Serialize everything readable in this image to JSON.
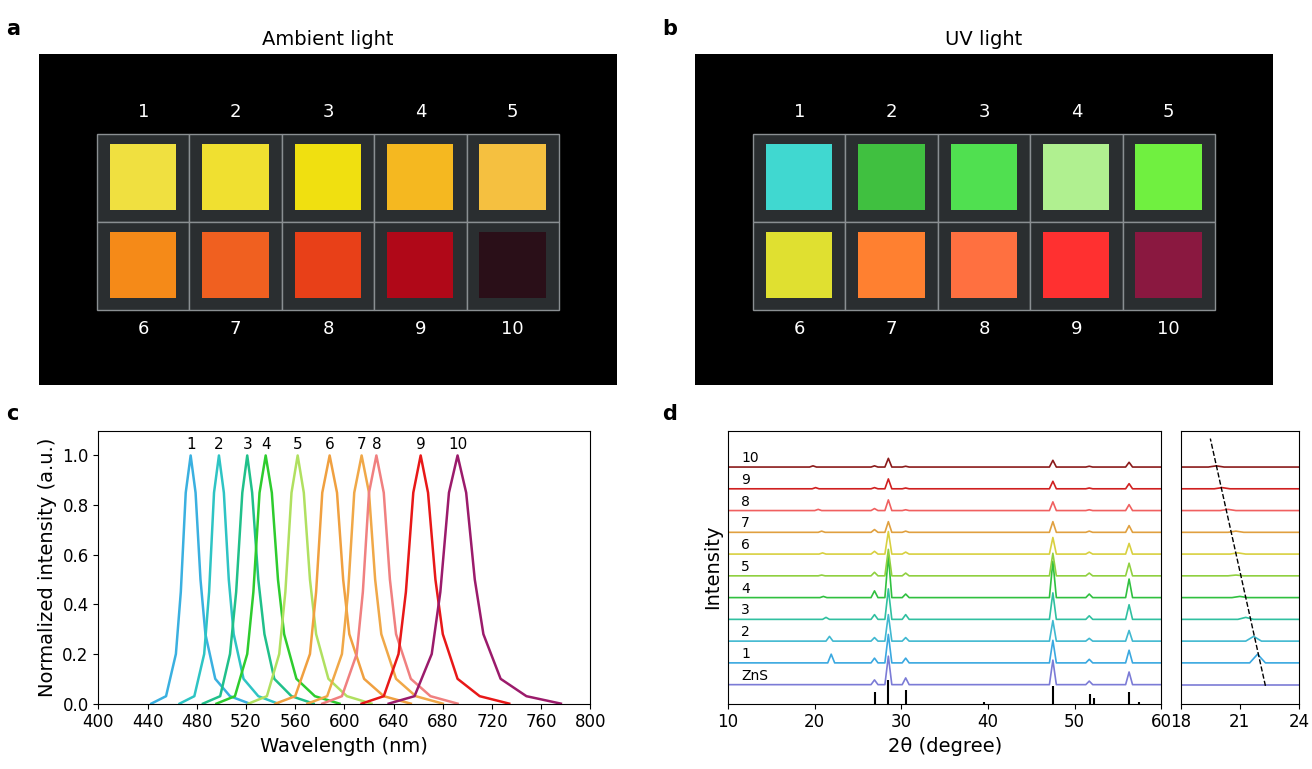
{
  "panels": [
    {
      "label": "a",
      "type": "photo",
      "title": "Ambient light",
      "samples": [
        1,
        2,
        3,
        4,
        5,
        6,
        7,
        8,
        9,
        10
      ],
      "colors": [
        "#f0e040",
        "#f0e030",
        "#f0e010",
        "#f5b820",
        "#f5c040",
        "#f58a18",
        "#f06020",
        "#e84018",
        "#b00818",
        "#2a0f18"
      ]
    },
    {
      "label": "b",
      "type": "photo",
      "title": "UV light",
      "samples": [
        1,
        2,
        3,
        4,
        5,
        6,
        7,
        8,
        9,
        10
      ],
      "colors": [
        "#40d8d0",
        "#40c040",
        "#50e050",
        "#b0f090",
        "#70f040",
        "#e0e030",
        "#ff8030",
        "#ff7040",
        "#ff3030",
        "#8a1840"
      ]
    }
  ],
  "chart_data": [
    {
      "label": "c",
      "type": "line",
      "x_label": "Wavelength (nm)",
      "y_label": "Normalized intensity (a.u.)",
      "xlim": [
        400,
        800
      ],
      "xticks": [
        400,
        440,
        480,
        520,
        560,
        600,
        640,
        680,
        720,
        760,
        800
      ],
      "ylim": [
        0,
        1.1
      ],
      "yticks": [
        {
          "value": 0,
          "label": "0.0"
        },
        0.2,
        0.4,
        0.6,
        0.8,
        {
          "value": 1,
          "label": "1.0"
        }
      ],
      "series": [
        {
          "name": "1",
          "color": "#3ab0e0",
          "x": [
            443,
            455,
            463,
            467,
            471,
            475,
            479,
            483,
            487,
            495,
            507,
            523
          ],
          "values": [
            0.0,
            0.03,
            0.2,
            0.45,
            0.85,
            1.0,
            0.85,
            0.5,
            0.28,
            0.1,
            0.03,
            0.0
          ]
        },
        {
          "name": "2",
          "color": "#2ec4c4",
          "x": [
            466,
            478,
            486,
            490,
            494,
            498,
            502,
            506,
            510,
            518,
            530,
            546
          ],
          "values": [
            0.0,
            0.03,
            0.2,
            0.45,
            0.85,
            1.0,
            0.85,
            0.5,
            0.28,
            0.1,
            0.03,
            0.0
          ]
        },
        {
          "name": "3",
          "color": "#20c08a",
          "x": [
            485,
            499,
            507,
            512,
            517,
            521,
            525,
            530,
            535,
            543,
            557,
            575
          ],
          "values": [
            0.0,
            0.03,
            0.2,
            0.45,
            0.85,
            1.0,
            0.85,
            0.5,
            0.28,
            0.1,
            0.03,
            0.0
          ]
        },
        {
          "name": "4",
          "color": "#2ecc2e",
          "x": [
            496,
            511,
            521,
            526,
            531,
            536,
            541,
            546,
            551,
            561,
            576,
            596
          ],
          "values": [
            0.0,
            0.03,
            0.2,
            0.45,
            0.85,
            1.0,
            0.85,
            0.5,
            0.28,
            0.1,
            0.03,
            0.0
          ]
        },
        {
          "name": "5",
          "color": "#b0e060",
          "x": [
            522,
            537,
            547,
            552,
            557,
            562,
            567,
            572,
            577,
            587,
            602,
            622
          ],
          "values": [
            0.0,
            0.03,
            0.2,
            0.45,
            0.85,
            1.0,
            0.85,
            0.5,
            0.28,
            0.1,
            0.03,
            0.0
          ]
        },
        {
          "name": "6",
          "color": "#f0a040",
          "x": [
            544,
            560,
            572,
            577,
            582,
            588,
            594,
            599,
            604,
            616,
            632,
            654
          ],
          "values": [
            0.0,
            0.03,
            0.2,
            0.45,
            0.85,
            1.0,
            0.85,
            0.5,
            0.28,
            0.1,
            0.03,
            0.0
          ]
        },
        {
          "name": "7",
          "color": "#f0a848",
          "x": [
            570,
            586,
            598,
            603,
            608,
            614,
            620,
            625,
            630,
            642,
            658,
            680
          ],
          "values": [
            0.0,
            0.03,
            0.2,
            0.45,
            0.85,
            1.0,
            0.85,
            0.5,
            0.28,
            0.1,
            0.03,
            0.0
          ]
        },
        {
          "name": "8",
          "color": "#f08080",
          "x": [
            582,
            598,
            610,
            615,
            620,
            626,
            632,
            637,
            642,
            654,
            670,
            692
          ],
          "values": [
            0.0,
            0.03,
            0.2,
            0.45,
            0.85,
            1.0,
            0.85,
            0.5,
            0.28,
            0.1,
            0.03,
            0.0
          ]
        },
        {
          "name": "9",
          "color": "#e81818",
          "x": [
            614,
            632,
            644,
            650,
            656,
            662,
            668,
            674,
            680,
            692,
            710,
            734
          ],
          "values": [
            0.0,
            0.03,
            0.2,
            0.45,
            0.85,
            1.0,
            0.85,
            0.5,
            0.28,
            0.1,
            0.03,
            0.0
          ]
        },
        {
          "name": "10",
          "color": "#9b1b6b",
          "x": [
            636,
            657,
            671,
            678,
            685,
            692,
            699,
            706,
            713,
            727,
            748,
            776
          ],
          "values": [
            0.0,
            0.03,
            0.2,
            0.45,
            0.85,
            1.0,
            0.85,
            0.5,
            0.28,
            0.1,
            0.03,
            0.0
          ]
        }
      ]
    },
    {
      "label": "d",
      "type": "line",
      "x_label": "2θ (degree)",
      "y_label": "Intensity",
      "tick_labels": "x",
      "xlim": [
        10,
        60
      ],
      "xticks": [
        10,
        20,
        30,
        40,
        50,
        60
      ],
      "reference": {
        "x": [
          26.9,
          28.5,
          30.5,
          39.6,
          47.5,
          51.8,
          52.3,
          56.3,
          57.5
        ],
        "values": [
          0.3,
          0.6,
          0.35,
          0.05,
          0.45,
          0.25,
          0.15,
          0.3,
          0.05
        ]
      },
      "inset": {
        "xlim": [
          18,
          24
        ],
        "xticks": [
          18,
          21,
          24
        ],
        "guide_line_x": [
          22.3,
          19.5
        ]
      },
      "series": [
        {
          "name": "ZnS",
          "color": "#7b7bd6",
          "x": [
            10,
            26.5,
            26.9,
            27.3,
            28.1,
            28.5,
            28.9,
            30.1,
            30.5,
            30.9,
            47.1,
            47.5,
            47.9,
            51.3,
            51.7,
            52.1,
            55.9,
            56.3,
            56.7,
            60
          ],
          "values": [
            0.03,
            0.03,
            0.15,
            0.03,
            0.03,
            0.75,
            0.03,
            0.03,
            0.2,
            0.03,
            0.03,
            0.65,
            0.03,
            0.03,
            0.12,
            0.03,
            0.03,
            0.35,
            0.03,
            0.03
          ]
        },
        {
          "name": "1",
          "color": "#3aa8e0",
          "x": [
            10,
            21.5,
            21.9,
            22.3,
            26.5,
            26.9,
            27.3,
            28.1,
            28.5,
            28.9,
            30.1,
            30.5,
            30.9,
            47.1,
            47.5,
            47.9,
            51.3,
            51.7,
            52.1,
            55.9,
            56.3,
            56.7,
            60
          ],
          "values": [
            0.03,
            0.03,
            0.25,
            0.03,
            0.03,
            0.15,
            0.03,
            0.03,
            0.75,
            0.03,
            0.03,
            0.15,
            0.03,
            0.03,
            0.6,
            0.03,
            0.03,
            0.12,
            0.03,
            0.03,
            0.35,
            0.03,
            0.03
          ]
        },
        {
          "name": "2",
          "color": "#40b8d0",
          "x": [
            10,
            21.3,
            21.7,
            22.1,
            26.5,
            26.9,
            27.3,
            28.1,
            28.5,
            28.9,
            30.1,
            30.5,
            30.9,
            47.1,
            47.5,
            47.9,
            51.3,
            51.7,
            52.1,
            55.9,
            56.3,
            56.7,
            60
          ],
          "values": [
            0.03,
            0.03,
            0.15,
            0.03,
            0.03,
            0.12,
            0.03,
            0.03,
            0.7,
            0.03,
            0.03,
            0.12,
            0.03,
            0.03,
            0.55,
            0.03,
            0.03,
            0.1,
            0.03,
            0.03,
            0.3,
            0.03,
            0.03
          ]
        },
        {
          "name": "3",
          "color": "#30c0a0",
          "x": [
            10,
            20.9,
            21.3,
            21.7,
            26.5,
            26.9,
            27.3,
            28.1,
            28.5,
            28.9,
            30.1,
            30.5,
            30.9,
            47.1,
            47.5,
            47.9,
            51.3,
            51.7,
            52.1,
            55.9,
            56.3,
            56.7,
            60
          ],
          "values": [
            0.03,
            0.03,
            0.08,
            0.03,
            0.03,
            0.15,
            0.03,
            0.03,
            0.8,
            0.03,
            0.03,
            0.15,
            0.03,
            0.03,
            0.7,
            0.03,
            0.03,
            0.12,
            0.03,
            0.03,
            0.4,
            0.03,
            0.03
          ]
        },
        {
          "name": "4",
          "color": "#30c040",
          "x": [
            10,
            20.6,
            21.0,
            21.4,
            26.5,
            26.9,
            27.3,
            28.1,
            28.5,
            28.9,
            30.1,
            30.5,
            30.9,
            47.1,
            47.5,
            47.9,
            51.3,
            51.7,
            52.1,
            55.9,
            56.3,
            56.7,
            60
          ],
          "values": [
            0.03,
            0.03,
            0.06,
            0.03,
            0.03,
            0.2,
            0.03,
            0.03,
            1.1,
            0.03,
            0.03,
            0.12,
            0.03,
            0.03,
            0.95,
            0.03,
            0.03,
            0.12,
            0.03,
            0.03,
            0.5,
            0.03,
            0.03
          ]
        },
        {
          "name": "5",
          "color": "#90d040",
          "x": [
            10,
            20.4,
            20.8,
            21.2,
            26.5,
            26.9,
            27.3,
            28.1,
            28.5,
            28.9,
            30.1,
            30.5,
            30.9,
            47.1,
            47.5,
            47.9,
            51.3,
            51.7,
            52.1,
            55.9,
            56.3,
            56.7,
            60
          ],
          "values": [
            0.03,
            0.03,
            0.05,
            0.03,
            0.03,
            0.12,
            0.03,
            0.03,
            0.7,
            0.03,
            0.03,
            0.1,
            0.03,
            0.03,
            0.6,
            0.03,
            0.03,
            0.1,
            0.03,
            0.03,
            0.35,
            0.03,
            0.03
          ]
        },
        {
          "name": "6",
          "color": "#d8d040",
          "x": [
            10,
            20.5,
            20.9,
            21.3,
            26.5,
            26.9,
            27.3,
            28.1,
            28.5,
            28.9,
            30.1,
            30.5,
            30.9,
            47.1,
            47.5,
            47.9,
            51.3,
            51.7,
            52.1,
            55.9,
            56.3,
            56.7,
            60
          ],
          "values": [
            0.03,
            0.03,
            0.06,
            0.03,
            0.03,
            0.1,
            0.03,
            0.03,
            0.6,
            0.03,
            0.03,
            0.08,
            0.03,
            0.03,
            0.45,
            0.03,
            0.03,
            0.08,
            0.03,
            0.03,
            0.3,
            0.03,
            0.03
          ]
        },
        {
          "name": "7",
          "color": "#e0a040",
          "x": [
            10,
            20.4,
            20.8,
            21.2,
            26.5,
            26.9,
            27.3,
            28.1,
            28.5,
            28.9,
            30.1,
            30.5,
            30.9,
            47.1,
            47.5,
            47.9,
            51.3,
            51.7,
            52.1,
            55.9,
            56.3,
            56.7,
            60
          ],
          "values": [
            0.03,
            0.03,
            0.06,
            0.03,
            0.03,
            0.1,
            0.03,
            0.03,
            0.3,
            0.03,
            0.03,
            0.06,
            0.03,
            0.03,
            0.3,
            0.03,
            0.03,
            0.06,
            0.03,
            0.03,
            0.2,
            0.03,
            0.03
          ]
        },
        {
          "name": "8",
          "color": "#f06060",
          "x": [
            10,
            20.0,
            20.4,
            20.8,
            26.5,
            26.9,
            27.3,
            28.1,
            28.5,
            28.9,
            30.1,
            30.5,
            30.9,
            47.1,
            47.5,
            47.9,
            51.3,
            51.7,
            52.1,
            55.9,
            56.3,
            56.7,
            60
          ],
          "values": [
            0.03,
            0.03,
            0.06,
            0.03,
            0.03,
            0.08,
            0.03,
            0.03,
            0.3,
            0.03,
            0.03,
            0.05,
            0.03,
            0.03,
            0.25,
            0.03,
            0.03,
            0.05,
            0.03,
            0.03,
            0.18,
            0.03,
            0.03
          ]
        },
        {
          "name": "9",
          "color": "#d02020",
          "x": [
            10,
            19.7,
            20.1,
            20.5,
            26.5,
            26.9,
            27.3,
            28.1,
            28.5,
            28.9,
            30.1,
            30.5,
            30.9,
            47.1,
            47.5,
            47.9,
            51.3,
            51.7,
            52.1,
            55.9,
            56.3,
            56.7,
            60
          ],
          "values": [
            0.03,
            0.03,
            0.06,
            0.03,
            0.03,
            0.06,
            0.03,
            0.03,
            0.28,
            0.03,
            0.03,
            0.05,
            0.03,
            0.03,
            0.22,
            0.03,
            0.03,
            0.05,
            0.03,
            0.03,
            0.16,
            0.03,
            0.03
          ]
        },
        {
          "name": "10",
          "color": "#8b1a1a",
          "x": [
            10,
            19.4,
            19.8,
            20.2,
            26.5,
            26.9,
            27.3,
            28.1,
            28.5,
            28.9,
            30.1,
            30.5,
            30.9,
            47.1,
            47.5,
            47.9,
            51.3,
            51.7,
            52.1,
            55.9,
            56.3,
            56.7,
            60
          ],
          "values": [
            0.03,
            0.03,
            0.06,
            0.03,
            0.03,
            0.06,
            0.03,
            0.03,
            0.25,
            0.03,
            0.03,
            0.05,
            0.03,
            0.03,
            0.2,
            0.03,
            0.03,
            0.05,
            0.03,
            0.03,
            0.15,
            0.03,
            0.03
          ]
        }
      ]
    }
  ]
}
